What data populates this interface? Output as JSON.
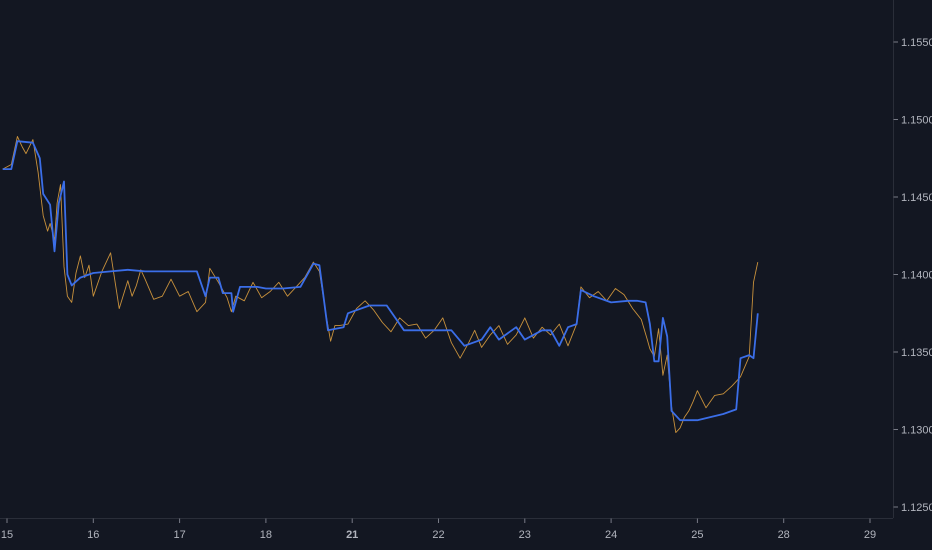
{
  "chart_data": {
    "type": "line",
    "title": "",
    "xlabel": "",
    "ylabel": "",
    "grid": false,
    "legend": "none",
    "x_ticks": [
      {
        "label": "15",
        "x": 15,
        "bold": false
      },
      {
        "label": "16",
        "x": 16,
        "bold": false
      },
      {
        "label": "17",
        "x": 17,
        "bold": false
      },
      {
        "label": "18",
        "x": 18,
        "bold": false
      },
      {
        "label": "21",
        "x": 19,
        "bold": true
      },
      {
        "label": "22",
        "x": 20,
        "bold": false
      },
      {
        "label": "23",
        "x": 21,
        "bold": false
      },
      {
        "label": "24",
        "x": 22,
        "bold": false
      },
      {
        "label": "25",
        "x": 23,
        "bold": false
      },
      {
        "label": "28",
        "x": 24,
        "bold": false
      },
      {
        "label": "29",
        "x": 25,
        "bold": false
      }
    ],
    "y_ticks": [
      {
        "label": "1.15500",
        "value": 1.155
      },
      {
        "label": "1.15000",
        "value": 1.15
      },
      {
        "label": "1.14500",
        "value": 1.145
      },
      {
        "label": "1.14000",
        "value": 1.14
      },
      {
        "label": "1.13500",
        "value": 1.135
      },
      {
        "label": "1.13000",
        "value": 1.13
      },
      {
        "label": "1.12500",
        "value": 1.125
      }
    ],
    "xlim": [
      14.95,
      26.0
    ],
    "ylim": [
      1.1244,
      1.1585
    ],
    "series": [
      {
        "color": "#c8913c",
        "stroke": "thin",
        "x": [
          14.95,
          15.05,
          15.12,
          15.18,
          15.22,
          15.3,
          15.36,
          15.42,
          15.47,
          15.5,
          15.55,
          15.58,
          15.62,
          15.66,
          15.7,
          15.75,
          15.8,
          15.85,
          15.9,
          15.95,
          16.0,
          16.1,
          16.2,
          16.3,
          16.4,
          16.45,
          16.5,
          16.55,
          16.6,
          16.7,
          16.8,
          16.9,
          17.0,
          17.1,
          17.2,
          17.3,
          17.35,
          17.45,
          17.55,
          17.6,
          17.65,
          17.75,
          17.85,
          17.95,
          18.05,
          18.15,
          18.25,
          18.35,
          18.45,
          18.55,
          18.62,
          18.7,
          18.75,
          18.8,
          18.85,
          18.95,
          19.05,
          19.15,
          19.25,
          19.35,
          19.45,
          19.55,
          19.65,
          19.75,
          19.85,
          19.95,
          20.05,
          20.15,
          20.25,
          20.35,
          20.42,
          20.5,
          20.6,
          20.7,
          20.8,
          20.9,
          21.0,
          21.1,
          21.2,
          21.3,
          21.4,
          21.5,
          21.6,
          21.65,
          21.75,
          21.85,
          21.95,
          22.05,
          22.15,
          22.25,
          22.35,
          22.42,
          22.45,
          22.5,
          22.55,
          22.6,
          22.65,
          22.7,
          22.75,
          22.8,
          22.85,
          22.9,
          22.95,
          23.0,
          23.1,
          23.2,
          23.3,
          23.4,
          23.5,
          23.6,
          23.65,
          23.7
        ],
        "y": [
          1.1468,
          1.1471,
          1.1489,
          1.1482,
          1.1478,
          1.1487,
          1.1466,
          1.1438,
          1.1428,
          1.1433,
          1.1422,
          1.1446,
          1.1458,
          1.1405,
          1.1386,
          1.1382,
          1.1401,
          1.1412,
          1.1398,
          1.1406,
          1.1386,
          1.1402,
          1.1414,
          1.1378,
          1.1396,
          1.1386,
          1.1393,
          1.1403,
          1.1397,
          1.1384,
          1.1386,
          1.1397,
          1.1386,
          1.1389,
          1.1376,
          1.1382,
          1.1404,
          1.1395,
          1.1385,
          1.1376,
          1.1386,
          1.1383,
          1.1395,
          1.1385,
          1.1389,
          1.1395,
          1.1386,
          1.1392,
          1.1398,
          1.1408,
          1.1402,
          1.1373,
          1.1357,
          1.1367,
          1.1367,
          1.1368,
          1.1378,
          1.1383,
          1.1377,
          1.1369,
          1.1363,
          1.1372,
          1.1367,
          1.1368,
          1.1359,
          1.1364,
          1.1372,
          1.1356,
          1.1346,
          1.1356,
          1.1364,
          1.1353,
          1.1361,
          1.1367,
          1.1355,
          1.1361,
          1.1372,
          1.1359,
          1.1366,
          1.1361,
          1.1368,
          1.1354,
          1.1368,
          1.1392,
          1.1385,
          1.1389,
          1.1383,
          1.1391,
          1.1387,
          1.1378,
          1.1371,
          1.1358,
          1.1352,
          1.1347,
          1.1365,
          1.1335,
          1.1348,
          1.1315,
          1.1298,
          1.1301,
          1.1308,
          1.1312,
          1.1318,
          1.1325,
          1.1314,
          1.1322,
          1.1323,
          1.1328,
          1.1334,
          1.1347,
          1.1395,
          1.1408
        ]
      },
      {
        "color": "#3b6ee8",
        "stroke": "thick",
        "x": [
          14.95,
          15.05,
          15.12,
          15.3,
          15.38,
          15.42,
          15.5,
          15.55,
          15.6,
          15.66,
          15.7,
          15.75,
          15.85,
          16.0,
          16.2,
          16.4,
          16.6,
          16.8,
          17.0,
          17.2,
          17.3,
          17.35,
          17.45,
          17.5,
          17.6,
          17.62,
          17.7,
          17.9,
          18.0,
          18.2,
          18.4,
          18.5,
          18.55,
          18.62,
          18.7,
          18.72,
          18.9,
          18.95,
          19.0,
          19.2,
          19.4,
          19.6,
          19.7,
          19.85,
          20.0,
          20.15,
          20.3,
          20.5,
          20.6,
          20.7,
          20.9,
          21.0,
          21.2,
          21.3,
          21.4,
          21.5,
          21.6,
          21.65,
          21.8,
          22.0,
          22.2,
          22.3,
          22.4,
          22.45,
          22.5,
          22.55,
          22.6,
          22.65,
          22.7,
          22.8,
          23.0,
          23.15,
          23.3,
          23.45,
          23.5,
          23.6,
          23.65,
          23.7
        ],
        "y": [
          1.1468,
          1.1468,
          1.1486,
          1.1485,
          1.1475,
          1.1452,
          1.1445,
          1.1415,
          1.1446,
          1.146,
          1.14,
          1.1393,
          1.1398,
          1.1401,
          1.1402,
          1.1403,
          1.1402,
          1.1402,
          1.1402,
          1.1402,
          1.1386,
          1.1398,
          1.1398,
          1.1388,
          1.1388,
          1.1376,
          1.1392,
          1.1392,
          1.1391,
          1.1391,
          1.1392,
          1.1402,
          1.1407,
          1.1406,
          1.1372,
          1.1364,
          1.1366,
          1.1375,
          1.1376,
          1.138,
          1.138,
          1.1364,
          1.1364,
          1.1364,
          1.1364,
          1.1364,
          1.1354,
          1.1358,
          1.1366,
          1.1358,
          1.1366,
          1.1358,
          1.1364,
          1.1364,
          1.1354,
          1.1366,
          1.1368,
          1.139,
          1.1386,
          1.1382,
          1.1383,
          1.1383,
          1.1382,
          1.1368,
          1.1344,
          1.1344,
          1.1372,
          1.136,
          1.1312,
          1.1306,
          1.1306,
          1.1308,
          1.131,
          1.1313,
          1.1346,
          1.1348,
          1.1346,
          1.1375
        ]
      }
    ]
  }
}
